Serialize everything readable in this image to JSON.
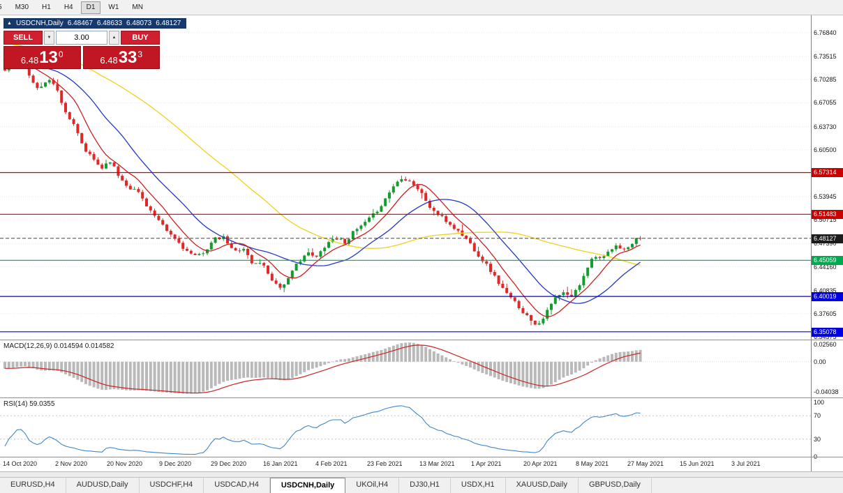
{
  "toolbar": {
    "timeframes": [
      "5",
      "M30",
      "H1",
      "H4",
      "D1",
      "W1",
      "MN"
    ],
    "active_index": 4
  },
  "chart_header": {
    "icon_glyph": "▲",
    "symbol": "USDCNH,Daily",
    "open": "6.48467",
    "high": "6.48633",
    "low": "6.48073",
    "close": "6.48127"
  },
  "one_click": {
    "sell_label": "SELL",
    "buy_label": "BUY",
    "lot_value": "3.00",
    "down_glyph": "▼",
    "up_glyph": "▲",
    "bid": {
      "prefix": "6.48",
      "big": "13",
      "sup": "0"
    },
    "ask": {
      "prefix": "6.48",
      "big": "33",
      "sup": "3"
    }
  },
  "macd_panel": {
    "label": "MACD(12,26,9) 0.014594 0.014582"
  },
  "rsi_panel": {
    "label": "RSI(14) 59.0355"
  },
  "tabs": {
    "items": [
      "EURUSD,H4",
      "AUDUSD,Daily",
      "USDCHF,H4",
      "USDCAD,H4",
      "USDCNH,Daily",
      "UKOil,H4",
      "DJ30,H1",
      "USDX,H1",
      "XAUUSD,Daily",
      "GBPUSD,Daily"
    ],
    "active_index": 4
  },
  "chart_data": {
    "type": "candlestick",
    "symbol": "USDCNH",
    "timeframe": "Daily",
    "ohlc": {
      "open": 6.48467,
      "high": 6.48633,
      "low": 6.48073,
      "close": 6.48127
    },
    "current_price": 6.48127,
    "price_axis": {
      "top_value": 6.7684,
      "bottom_value": 6.34375,
      "labels": [
        6.7684,
        6.73515,
        6.70285,
        6.67055,
        6.6373,
        6.605,
        6.53945,
        6.50715,
        6.4739,
        6.4416,
        6.40835,
        6.37605,
        6.34375
      ]
    },
    "levels": [
      {
        "value": 6.57314,
        "color": "#c80000"
      },
      {
        "value": 6.51483,
        "color": "#c80000"
      },
      {
        "value": 6.45059,
        "color": "#00a84e"
      },
      {
        "value": 6.40019,
        "color": "#0000e0"
      },
      {
        "value": 6.35078,
        "color": "#0000e0"
      }
    ],
    "date_axis": [
      "14 Oct 2020",
      "2 Nov 2020",
      "20 Nov 2020",
      "9 Dec 2020",
      "29 Dec 2020",
      "16 Jan 2021",
      "4 Feb 2021",
      "23 Feb 2021",
      "13 Mar 2021",
      "1 Apr 2021",
      "20 Apr 2021",
      "8 May 2021",
      "27 May 2021",
      "15 Jun 2021",
      "3 Jul 2021"
    ],
    "candles": {
      "count": 158,
      "seed": 11,
      "prehistory": {
        "bars": 60,
        "from": 6.796,
        "to": 6.722
      },
      "anchors": [
        [
          0.0,
          6.716
        ],
        [
          0.012,
          6.728
        ],
        [
          0.028,
          6.733
        ],
        [
          0.042,
          6.701
        ],
        [
          0.055,
          6.688
        ],
        [
          0.068,
          6.707
        ],
        [
          0.082,
          6.689
        ],
        [
          0.095,
          6.659
        ],
        [
          0.11,
          6.636
        ],
        [
          0.125,
          6.605
        ],
        [
          0.14,
          6.591
        ],
        [
          0.152,
          6.579
        ],
        [
          0.165,
          6.591
        ],
        [
          0.18,
          6.567
        ],
        [
          0.195,
          6.553
        ],
        [
          0.21,
          6.546
        ],
        [
          0.225,
          6.525
        ],
        [
          0.24,
          6.507
        ],
        [
          0.255,
          6.491
        ],
        [
          0.27,
          6.479
        ],
        [
          0.285,
          6.464
        ],
        [
          0.3,
          6.455
        ],
        [
          0.315,
          6.464
        ],
        [
          0.33,
          6.48
        ],
        [
          0.345,
          6.482
        ],
        [
          0.36,
          6.462
        ],
        [
          0.375,
          6.469
        ],
        [
          0.39,
          6.444
        ],
        [
          0.403,
          6.449
        ],
        [
          0.418,
          6.427
        ],
        [
          0.432,
          6.412
        ],
        [
          0.447,
          6.425
        ],
        [
          0.46,
          6.447
        ],
        [
          0.475,
          6.461
        ],
        [
          0.49,
          6.454
        ],
        [
          0.505,
          6.473
        ],
        [
          0.52,
          6.483
        ],
        [
          0.535,
          6.476
        ],
        [
          0.55,
          6.491
        ],
        [
          0.565,
          6.501
        ],
        [
          0.58,
          6.514
        ],
        [
          0.595,
          6.531
        ],
        [
          0.61,
          6.553
        ],
        [
          0.625,
          6.567
        ],
        [
          0.64,
          6.56
        ],
        [
          0.655,
          6.545
        ],
        [
          0.67,
          6.523
        ],
        [
          0.685,
          6.512
        ],
        [
          0.7,
          6.501
        ],
        [
          0.715,
          6.49
        ],
        [
          0.73,
          6.477
        ],
        [
          0.745,
          6.458
        ],
        [
          0.76,
          6.442
        ],
        [
          0.775,
          6.422
        ],
        [
          0.79,
          6.403
        ],
        [
          0.805,
          6.39
        ],
        [
          0.82,
          6.374
        ],
        [
          0.838,
          6.36
        ],
        [
          0.852,
          6.377
        ],
        [
          0.865,
          6.397
        ],
        [
          0.878,
          6.405
        ],
        [
          0.89,
          6.399
        ],
        [
          0.902,
          6.412
        ],
        [
          0.915,
          6.439
        ],
        [
          0.928,
          6.459
        ],
        [
          0.94,
          6.451
        ],
        [
          0.952,
          6.464
        ],
        [
          0.965,
          6.471
        ],
        [
          0.978,
          6.464
        ],
        [
          0.99,
          6.478
        ],
        [
          1.0,
          6.4813
        ]
      ]
    },
    "moving_averages": [
      {
        "period": 8,
        "color": "#cc2020"
      },
      {
        "period": 20,
        "color": "#2238c8"
      },
      {
        "period": 55,
        "color": "#f0d020"
      }
    ],
    "macd": {
      "params": [
        12,
        26,
        9
      ],
      "values": [
        0.014594,
        0.014582
      ],
      "scale_max": 0.0285,
      "scale_min": -0.0475,
      "fit": {
        "pos": 0.0262,
        "neg": 0.0425
      },
      "hist_color": "#b9b9b9",
      "signal_color": "#cc2222",
      "axis_labels": [
        {
          "v": 0.0256,
          "t": "0.02560"
        },
        {
          "v": 0,
          "t": "0.00"
        },
        {
          "v": -0.04038,
          "t": "-0.04038"
        }
      ]
    },
    "rsi": {
      "period": 14,
      "value": 59.0355,
      "color": "#3f87c9",
      "levels": [
        70,
        30
      ],
      "axis_labels": [
        {
          "v": 100,
          "t": "100"
        },
        {
          "v": 70,
          "t": "70"
        },
        {
          "v": 30,
          "t": "30"
        },
        {
          "v": 0,
          "t": "0"
        }
      ]
    },
    "colors": {
      "up": "#169b2f",
      "down": "#e02828",
      "grid": "#e8e8e8",
      "current_line": "#444444",
      "current_badge": "#1c1c1c"
    }
  }
}
